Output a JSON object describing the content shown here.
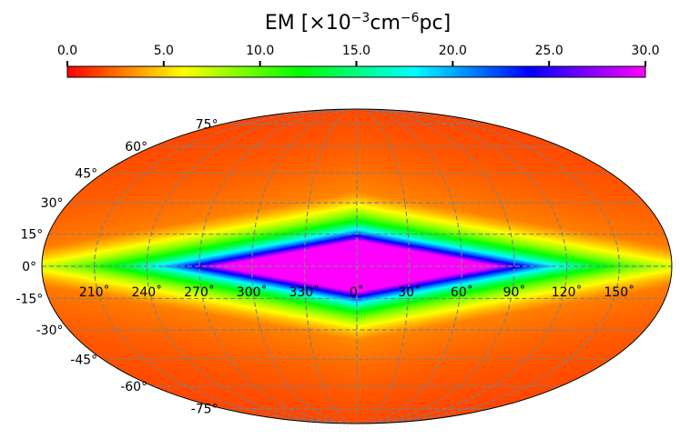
{
  "colorbar": {
    "title_main": "EM [×10",
    "title_exp1": "−3",
    "title_mid": "cm",
    "title_exp2": "−6",
    "title_end": "pc]",
    "ticks": [
      "0.0",
      "5.0",
      "10.0",
      "15.0",
      "20.0",
      "25.0",
      "30.0"
    ],
    "colormap": [
      "#ff0000",
      "#ffff00",
      "#00ff00",
      "#00ffff",
      "#0000ff",
      "#ff00ff"
    ]
  },
  "chart_data": {
    "type": "heatmap",
    "projection": "mollweide",
    "title": "EM [×10⁻³cm⁻⁶pc]",
    "value_range": [
      0.0,
      30.0
    ],
    "colorbar_ticks": [
      0.0,
      5.0,
      10.0,
      15.0,
      20.0,
      25.0,
      30.0
    ],
    "grid": true,
    "latitude_labels": [
      "75°",
      "60°",
      "45°",
      "30°",
      "15°",
      "0°",
      "-15°",
      "-30°",
      "-45°",
      "-60°",
      "-75°"
    ],
    "latitude_values": [
      75,
      60,
      45,
      30,
      15,
      0,
      -15,
      -30,
      -45,
      -60,
      -75
    ],
    "longitude_labels": [
      "210˚",
      "240˚",
      "270˚",
      "300˚",
      "330˚",
      "0˚",
      "30˚",
      "60˚",
      "90˚",
      "120˚",
      "150˚"
    ],
    "longitude_values": [
      -150,
      -120,
      -90,
      -60,
      -30,
      0,
      30,
      60,
      90,
      120,
      150
    ],
    "field": {
      "description_values": "saturated region near galactic center, falling off with |l| and |b|",
      "center_value": 30.0,
      "saturated_half_width_lon_deg": 80,
      "saturated_half_height_lat_deg": 12,
      "outer_value": 1.5
    }
  }
}
